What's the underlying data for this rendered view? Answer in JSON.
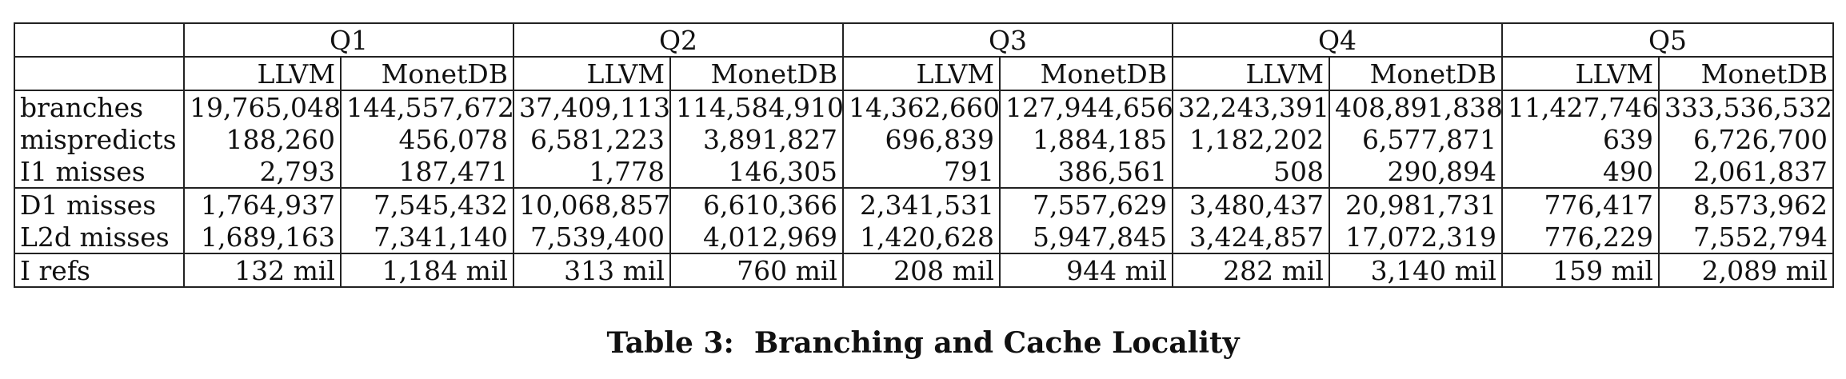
{
  "table": {
    "queries": [
      "Q1",
      "Q2",
      "Q3",
      "Q4",
      "Q5"
    ],
    "systems": [
      "LLVM",
      "MonetDB"
    ],
    "rows": [
      {
        "label": "branches",
        "values": [
          "19,765,048",
          "144,557,672",
          "37,409,113",
          "114,584,910",
          "14,362,660",
          "127,944,656",
          "32,243,391",
          "408,891,838",
          "11,427,746",
          "333,536,532"
        ]
      },
      {
        "label": "mispredicts",
        "values": [
          "188,260",
          "456,078",
          "6,581,223",
          "3,891,827",
          "696,839",
          "1,884,185",
          "1,182,202",
          "6,577,871",
          "639",
          "6,726,700"
        ]
      },
      {
        "label": "I1 misses",
        "values": [
          "2,793",
          "187,471",
          "1,778",
          "146,305",
          "791",
          "386,561",
          "508",
          "290,894",
          "490",
          "2,061,837"
        ]
      },
      {
        "label": "D1 misses",
        "values": [
          "1,764,937",
          "7,545,432",
          "10,068,857",
          "6,610,366",
          "2,341,531",
          "7,557,629",
          "3,480,437",
          "20,981,731",
          "776,417",
          "8,573,962"
        ]
      },
      {
        "label": "L2d misses",
        "values": [
          "1,689,163",
          "7,341,140",
          "7,539,400",
          "4,012,969",
          "1,420,628",
          "5,947,845",
          "3,424,857",
          "17,072,319",
          "776,229",
          "7,552,794"
        ]
      },
      {
        "label": "I refs",
        "values": [
          "132 mil",
          "1,184 mil",
          "313 mil",
          "760 mil",
          "208 mil",
          "944 mil",
          "282 mil",
          "3,140 mil",
          "159 mil",
          "2,089 mil"
        ]
      }
    ]
  },
  "caption": {
    "number": "Table 3:",
    "text": "Branching and Cache Locality"
  }
}
